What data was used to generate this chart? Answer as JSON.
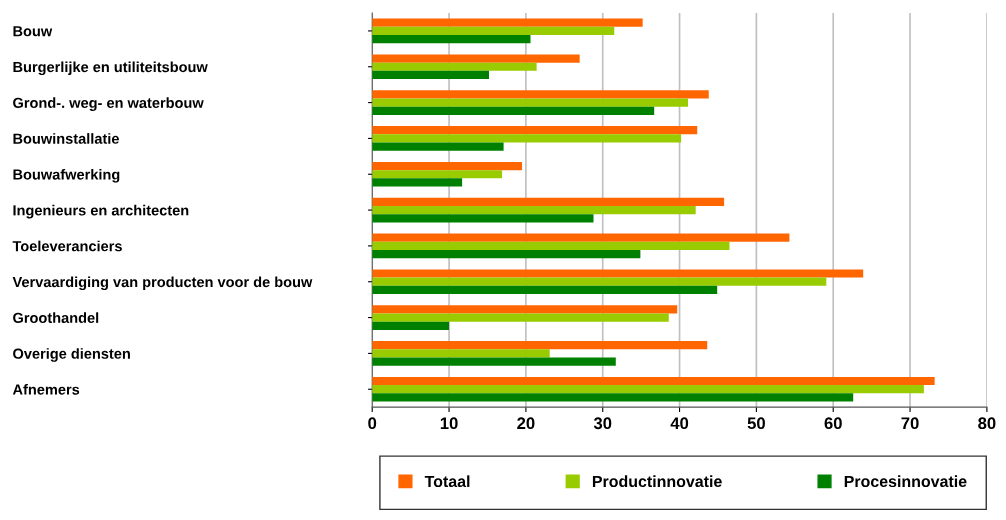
{
  "chart_data": {
    "type": "bar",
    "orientation": "horizontal",
    "categories": [
      "Bouw",
      "Burgerlijke en utiliteitsbouw",
      "Grond-. weg- en waterbouw",
      "Bouwinstallatie",
      "Bouwafwerking",
      "Ingenieurs en architecten",
      "Toeleveranciers",
      "Vervaardiging van producten voor de bouw",
      "Groothandel",
      "Overige diensten",
      "Afnemers"
    ],
    "series": [
      {
        "name": "Totaal",
        "color": "#ff6600",
        "values": [
          35.2,
          27.0,
          43.8,
          42.3,
          19.5,
          45.8,
          54.3,
          63.9,
          39.7,
          43.6,
          73.2
        ]
      },
      {
        "name": "Productinnovatie",
        "color": "#99cc00",
        "values": [
          31.5,
          21.4,
          41.1,
          40.2,
          16.9,
          42.1,
          46.5,
          59.1,
          38.6,
          23.1,
          71.8
        ]
      },
      {
        "name": "Procesinnovatie",
        "color": "#008000",
        "values": [
          20.6,
          15.2,
          36.7,
          17.1,
          11.7,
          28.8,
          34.9,
          44.9,
          10.0,
          31.7,
          62.6
        ]
      }
    ],
    "xlim": [
      0,
      80
    ],
    "xticks": [
      0,
      10,
      20,
      30,
      40,
      50,
      60,
      70,
      80
    ],
    "grid": "x",
    "legend": "bottom"
  }
}
